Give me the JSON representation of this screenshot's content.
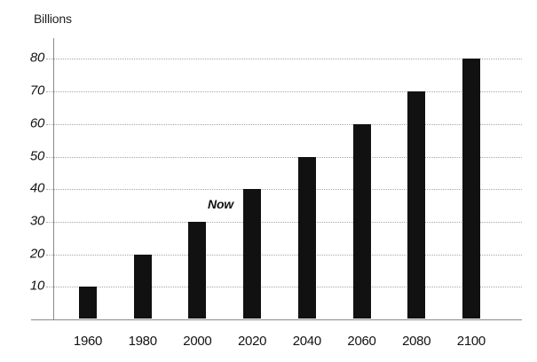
{
  "chart_data": {
    "type": "bar",
    "ylabel": "Billions",
    "categories": [
      "1960",
      "1980",
      "2000",
      "2020",
      "2040",
      "2060",
      "2080",
      "2100"
    ],
    "values": [
      10,
      20,
      30,
      40,
      50,
      60,
      70,
      80
    ],
    "yticks": [
      10,
      20,
      30,
      40,
      50,
      60,
      70,
      80
    ],
    "ylim": [
      0,
      85
    ],
    "annotation": {
      "text": "Now",
      "between": [
        "2000",
        "2020"
      ]
    },
    "bar_color": "#111111",
    "axis_color": "#8a8a8a",
    "grid_color": "#a6a6a6",
    "grid": "horizontal-dotted",
    "legend": "none"
  }
}
